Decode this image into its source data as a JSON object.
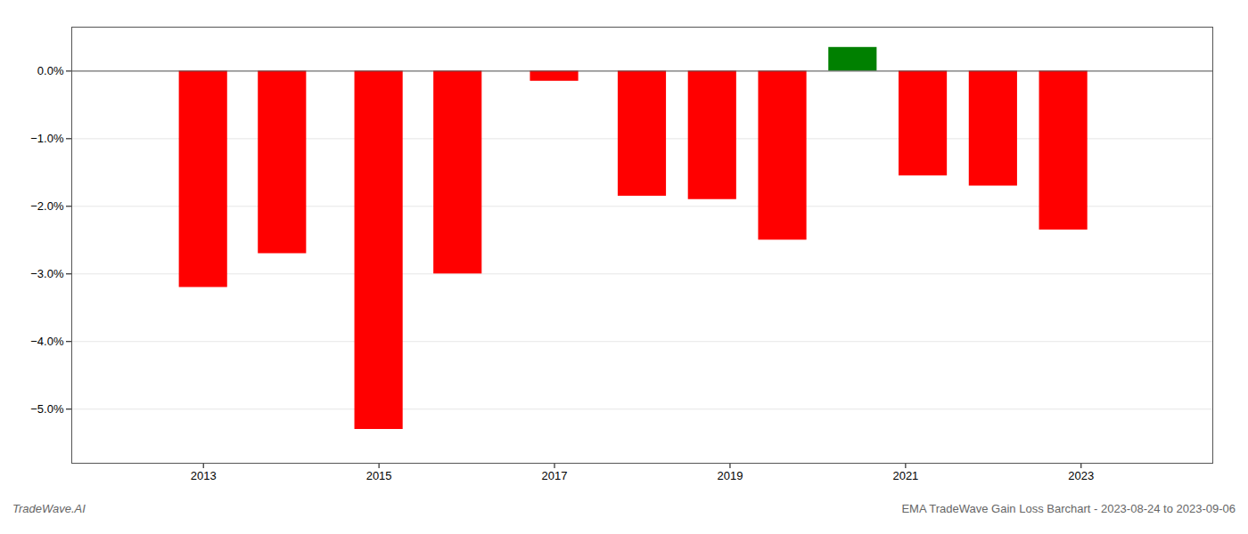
{
  "chart_data": {
    "type": "bar",
    "x": [
      2013,
      2013.9,
      2015,
      2015.9,
      2017,
      2018,
      2018.8,
      2019.6,
      2020.4,
      2021.2,
      2022,
      2022.8
    ],
    "values": [
      -3.2,
      -2.7,
      -5.3,
      -3.0,
      -0.15,
      -1.85,
      -1.9,
      -2.5,
      0.35,
      -1.55,
      -1.7,
      -2.35
    ],
    "colors": [
      "#ff0000",
      "#ff0000",
      "#ff0000",
      "#ff0000",
      "#ff0000",
      "#ff0000",
      "#ff0000",
      "#ff0000",
      "#008000",
      "#ff0000",
      "#ff0000",
      "#ff0000"
    ],
    "xlim": [
      2011.5,
      2024.5
    ],
    "ylim": [
      -5.8,
      0.65
    ],
    "xticks": [
      2013,
      2015,
      2017,
      2019,
      2021,
      2023
    ],
    "yticks": [
      {
        "value": 0.0,
        "label": "0.0%"
      },
      {
        "value": -1.0,
        "label": "−1.0%"
      },
      {
        "value": -2.0,
        "label": "−2.0%"
      },
      {
        "value": -3.0,
        "label": "−3.0%"
      },
      {
        "value": -4.0,
        "label": "−4.0%"
      },
      {
        "value": -5.0,
        "label": "−5.0%"
      }
    ],
    "grid": true,
    "annotations": [
      "TradeWave.AI",
      "EMA TradeWave Gain Loss Barchart - 2023-08-24 to 2023-09-06"
    ]
  }
}
